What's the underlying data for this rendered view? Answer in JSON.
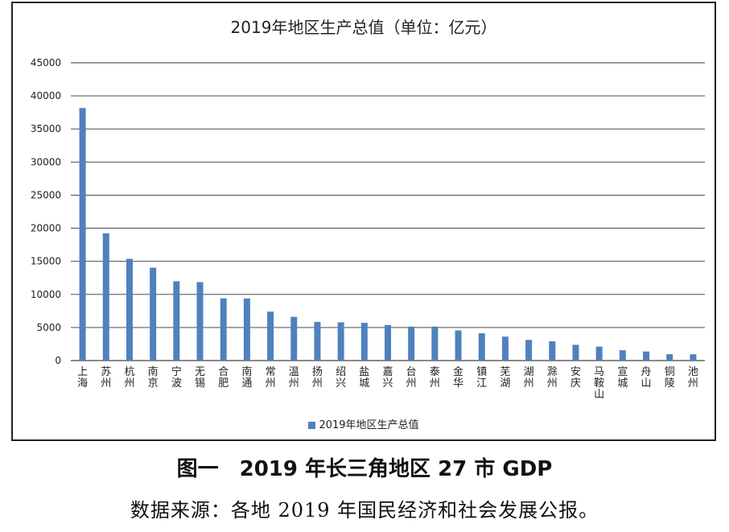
{
  "chart_data": {
    "type": "bar",
    "title": "2019年地区生产总值（单位：亿元）",
    "categories": [
      "上海",
      "苏州",
      "杭州",
      "南京",
      "宁波",
      "无锡",
      "合肥",
      "南通",
      "常州",
      "温州",
      "扬州",
      "绍兴",
      "盐城",
      "嘉兴",
      "台州",
      "泰州",
      "金华",
      "镇江",
      "芜湖",
      "湖州",
      "滁州",
      "安庆",
      "马鞍山",
      "宣城",
      "舟山",
      "铜陵",
      "池州"
    ],
    "series": [
      {
        "name": "2019年地区生产总值",
        "color": "#4F81BD",
        "values": [
          38155,
          19236,
          15373,
          14031,
          11985,
          11852,
          9409,
          9383,
          7401,
          6606,
          5850,
          5781,
          5702,
          5370,
          5134,
          5133,
          4560,
          4127,
          3618,
          3122,
          2909,
          2381,
          2111,
          1561,
          1372,
          960,
          946
        ]
      }
    ],
    "xlabel": "",
    "ylabel": "",
    "ylim": [
      0,
      45000
    ],
    "yticks": [
      0,
      5000,
      10000,
      15000,
      20000,
      25000,
      30000,
      35000,
      40000,
      45000
    ],
    "grid": true,
    "legend_position": "bottom"
  },
  "caption": "图一　2019 年长三角地区 27 市 GDP",
  "source_note": "数据来源：各地 2019 年国民经济和社会发展公报。"
}
